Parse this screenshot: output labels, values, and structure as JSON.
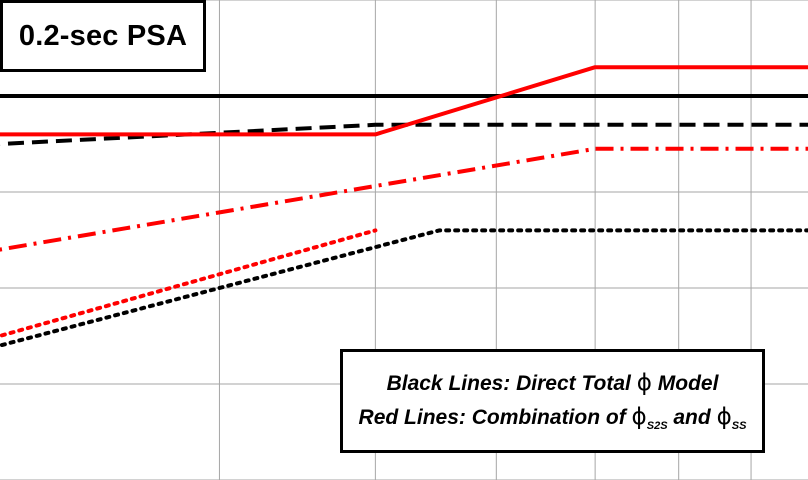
{
  "title": "0.2-sec PSA",
  "legend": {
    "black_text": "Black Lines: Direct Total",
    "black_symbol": "ϕ",
    "black_suffix": "Model",
    "red_text": "Red Lines: Combination of",
    "red_symbol_1": "ϕ",
    "red_sub_1": "S2S",
    "red_and": "and",
    "red_symbol_2": "ϕ",
    "red_sub_2": "SS"
  },
  "chart_data": {
    "type": "line",
    "x_scale": "log",
    "xlim": [
      1,
      9
    ],
    "ylim": [
      0,
      5
    ],
    "grid": true,
    "title": "0.2-sec PSA",
    "series": [
      {
        "group": "Black Lines: Direct Total ϕ Model",
        "color": "#000000",
        "style": "solid",
        "x": [
          1,
          9
        ],
        "y": [
          4.0,
          4.0
        ]
      },
      {
        "group": "Black Lines: Direct Total ϕ Model",
        "color": "#000000",
        "style": "dashed",
        "x": [
          1,
          2.0,
          4.0,
          9
        ],
        "y": [
          3.5,
          3.5,
          3.7,
          3.7
        ]
      },
      {
        "group": "Black Lines: Direct Total ϕ Model",
        "color": "#000000",
        "style": "dotted",
        "x": [
          1,
          2.0,
          4.5,
          9
        ],
        "y": [
          1.4,
          1.4,
          2.6,
          2.6
        ]
      },
      {
        "group": "Red Lines: Combination of ϕS2S and ϕSS",
        "color": "#ff0000",
        "style": "solid",
        "x": [
          1,
          4.0,
          6.0,
          9
        ],
        "y": [
          3.6,
          3.6,
          4.3,
          4.3
        ]
      },
      {
        "group": "Red Lines: Combination of ϕS2S and ϕSS",
        "color": "#ff0000",
        "style": "dashdot",
        "x": [
          1,
          2.0,
          6.0,
          9
        ],
        "y": [
          2.4,
          2.4,
          3.45,
          3.45
        ]
      },
      {
        "group": "Red Lines: Combination of ϕS2S and ϕSS",
        "color": "#ff0000",
        "style": "dotted",
        "x": [
          1,
          2.0,
          4.0
        ],
        "y": [
          1.5,
          1.5,
          2.6
        ]
      }
    ],
    "legend_position": "bottom-right"
  }
}
